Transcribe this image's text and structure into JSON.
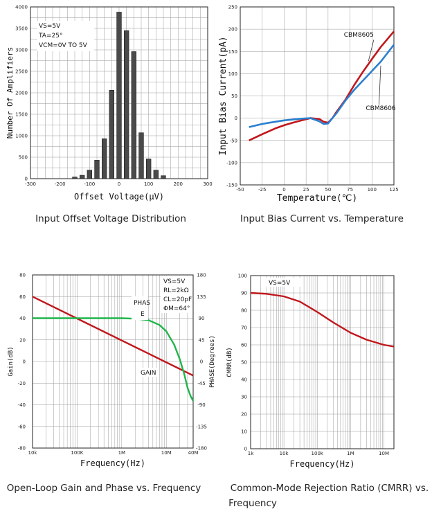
{
  "captions": {
    "c1": "Input Offset Voltage Distribution",
    "c2": "Input Bias Current vs. Temperature",
    "c3": "Open-Loop Gain and Phase vs. Frequency",
    "c4a": "Common-Mode Rejection Ratio (CMRR) vs.",
    "c4b": "Frequency"
  },
  "colors": {
    "red": "#c0171c",
    "blue": "#2a7fd0",
    "green": "#1fb54a",
    "darkred": "#c0171c",
    "bar": "#4a4a4a"
  },
  "chart_data": [
    {
      "type": "bar",
      "title": "",
      "xlabel": "Offset Voltage(μV)",
      "ylabel": "Number Of Amplifiers",
      "xlim": [
        -300,
        300
      ],
      "ylim": [
        0,
        4000
      ],
      "xticks": [
        -300,
        -200,
        -100,
        0,
        100,
        200,
        300
      ],
      "yticks": [
        0,
        500,
        1000,
        1500,
        2000,
        2500,
        3000,
        3500,
        4000
      ],
      "annotations": [
        "VS=5V",
        "TA=25°",
        "VCM=0V TO 5V"
      ],
      "bar_width": 16,
      "x": [
        -150,
        -125,
        -100,
        -75,
        -50,
        -25,
        0,
        25,
        50,
        75,
        100,
        125,
        150
      ],
      "values": [
        40,
        80,
        200,
        430,
        930,
        2060,
        3880,
        3450,
        2960,
        1070,
        460,
        200,
        70
      ]
    },
    {
      "type": "line",
      "title": "",
      "xlabel": "Temperature(℃)",
      "ylabel": "Input Bias Current(pA)",
      "xlim": [
        -50,
        125
      ],
      "ylim": [
        -150,
        250
      ],
      "xticks": [
        -50,
        -25,
        0,
        25,
        50,
        75,
        100,
        125
      ],
      "yticks": [
        -150,
        -100,
        -50,
        0,
        50,
        100,
        150,
        200,
        250
      ],
      "series": [
        {
          "name": "CBM8605",
          "color": "#c0171c",
          "x": [
            -40,
            -25,
            -10,
            0,
            10,
            20,
            30,
            40,
            45,
            50,
            55,
            60,
            70,
            80,
            90,
            100,
            110,
            125
          ],
          "y": [
            -50,
            -36,
            -23,
            -16,
            -10,
            -5,
            0,
            -2,
            -8,
            -10,
            0,
            15,
            42,
            75,
            105,
            133,
            160,
            195
          ]
        },
        {
          "name": "CBM8606",
          "color": "#2a7fd0",
          "x": [
            -40,
            -25,
            -10,
            0,
            10,
            20,
            30,
            40,
            45,
            50,
            55,
            60,
            70,
            80,
            90,
            100,
            110,
            125
          ],
          "y": [
            -20,
            -13,
            -8,
            -5,
            -3,
            -1,
            0,
            -7,
            -13,
            -12,
            0,
            12,
            40,
            64,
            85,
            106,
            127,
            165
          ]
        }
      ]
    },
    {
      "type": "line",
      "title": "",
      "xlabel": "Frequency(Hz)",
      "ylabel": "Gain(dB)",
      "ylabel_right": "PHASE(Degrees)",
      "x_scale": "log",
      "xlim": [
        10000,
        40000000
      ],
      "ylim": [
        -80,
        80
      ],
      "ylim_right": [
        -180,
        180
      ],
      "xticks_labels": [
        "10k",
        "100K",
        "1M",
        "10M",
        "40M"
      ],
      "xticks_values": [
        10000,
        100000,
        1000000,
        10000000,
        40000000
      ],
      "yticks": [
        -80,
        -60,
        -40,
        -20,
        0,
        20,
        40,
        60,
        80
      ],
      "yticks_right": [
        -180,
        -135,
        -90,
        -45,
        0,
        45,
        90,
        135,
        180
      ],
      "annotations": [
        "VS=5V",
        "RL=2kΩ",
        "CL=20pF",
        "ΦM=64°"
      ],
      "series": [
        {
          "name": "GAIN",
          "color": "#c0171c",
          "axis": "left",
          "x": [
            10000,
            40000000
          ],
          "y": [
            60,
            -13
          ]
        },
        {
          "name": "PHASE",
          "color": "#1fb54a",
          "axis": "right",
          "x": [
            10000,
            1000000,
            2000000,
            4000000,
            7000000,
            10000000,
            15000000,
            20000000,
            25000000,
            30000000,
            35000000,
            40000000
          ],
          "y": [
            90,
            90,
            89,
            86,
            76,
            63,
            35,
            5,
            -25,
            -55,
            -72,
            -82
          ]
        }
      ]
    },
    {
      "type": "line",
      "title": "",
      "xlabel": "Frequency(Hz)",
      "ylabel": "CMRR(dB)",
      "x_scale": "log",
      "xlim": [
        1000,
        20000000
      ],
      "ylim": [
        0,
        100
      ],
      "xticks_labels": [
        "1k",
        "10k",
        "100k",
        "1M",
        "10M"
      ],
      "xticks_values": [
        1000,
        10000,
        100000,
        1000000,
        10000000
      ],
      "yticks": [
        0,
        10,
        20,
        30,
        40,
        50,
        60,
        70,
        80,
        90,
        100
      ],
      "annotations": [
        "VS=5V"
      ],
      "series": [
        {
          "name": "",
          "color": "#c0171c",
          "x": [
            1000,
            3000,
            10000,
            30000,
            100000,
            300000,
            1000000,
            3000000,
            10000000,
            20000000
          ],
          "y": [
            90,
            89.5,
            88,
            85,
            79,
            73,
            67,
            63,
            60,
            59
          ]
        }
      ]
    }
  ]
}
